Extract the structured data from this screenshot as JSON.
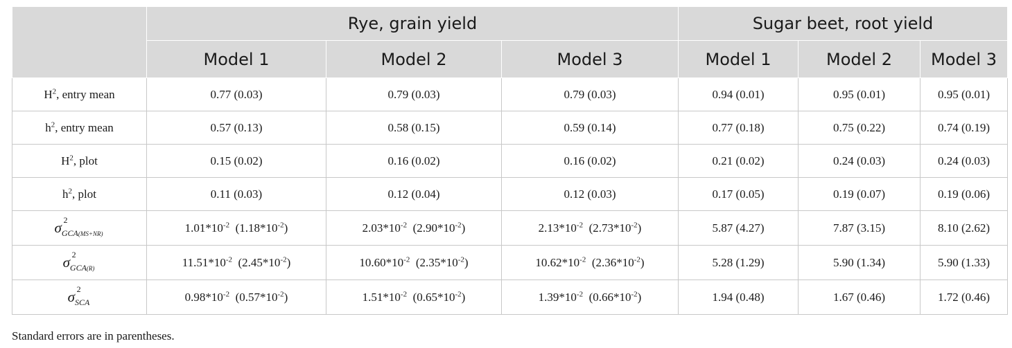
{
  "header": {
    "group_rye": "Rye, grain yield",
    "group_beet": "Sugar beet, root yield",
    "models": [
      "Model 1",
      "Model 2",
      "Model 3",
      "Model 1",
      "Model 2",
      "Model 3"
    ]
  },
  "rows": [
    {
      "label_main": "H",
      "label_sup": "2",
      "label_rest": ", entry mean",
      "cells": [
        "0.77 (0.03)",
        "0.79 (0.03)",
        "0.79 (0.03)",
        "0.94 (0.01)",
        "0.95 (0.01)",
        "0.95 (0.01)"
      ]
    },
    {
      "label_main": "h",
      "label_sup": "2",
      "label_rest": ", entry mean",
      "cells": [
        "0.57 (0.13)",
        "0.58 (0.15)",
        "0.59 (0.14)",
        "0.77 (0.18)",
        "0.75 (0.22)",
        "0.74 (0.19)"
      ]
    },
    {
      "label_main": "H",
      "label_sup": "2",
      "label_rest": ", plot",
      "cells": [
        "0.15 (0.02)",
        "0.16 (0.02)",
        "0.16 (0.02)",
        "0.21 (0.02)",
        "0.24 (0.03)",
        "0.24 (0.03)"
      ]
    },
    {
      "label_main": "h",
      "label_sup": "2",
      "label_rest": ", plot",
      "cells": [
        "0.11 (0.03)",
        "0.12 (0.04)",
        "0.12 (0.03)",
        "0.17 (0.05)",
        "0.19 (0.07)",
        "0.19 (0.06)"
      ]
    },
    {
      "sigma": "σ",
      "sigma_sup": "2",
      "sigma_sub": "GCA",
      "sigma_sub2": "(MS+NR)",
      "cells_sci": [
        {
          "a": "1.01*10",
          "ae": "-2",
          "b": "(1.18*10",
          "be": "-2",
          "c": ")"
        },
        {
          "a": "2.03*10",
          "ae": "-2",
          "b": "(2.90*10",
          "be": "-2",
          "c": ")"
        },
        {
          "a": "2.13*10",
          "ae": "-2",
          "b": "(2.73*10",
          "be": "-2",
          "c": ")"
        }
      ],
      "cells": [
        "5.87 (4.27)",
        "7.87 (3.15)",
        "8.10 (2.62)"
      ]
    },
    {
      "sigma": "σ",
      "sigma_sup": "2",
      "sigma_sub": "GCA",
      "sigma_sub2": "(R)",
      "cells_sci": [
        {
          "a": "11.51*10",
          "ae": "-2",
          "b": "(2.45*10",
          "be": "-2",
          "c": ")"
        },
        {
          "a": "10.60*10",
          "ae": "-2",
          "b": "(2.35*10",
          "be": "-2",
          "c": ")"
        },
        {
          "a": "10.62*10",
          "ae": "-2",
          "b": "(2.36*10",
          "be": "-2",
          "c": ")"
        }
      ],
      "cells": [
        "5.28 (1.29)",
        "5.90 (1.34)",
        "5.90 (1.33)"
      ]
    },
    {
      "sigma": "σ",
      "sigma_sup": "2",
      "sigma_sub": "SCA",
      "sigma_sub2": "",
      "cells_sci": [
        {
          "a": "0.98*10",
          "ae": "-2",
          "b": "(0.57*10",
          "be": "-2",
          "c": ")"
        },
        {
          "a": "1.51*10",
          "ae": "-2",
          "b": "(0.65*10",
          "be": "-2",
          "c": ")"
        },
        {
          "a": "1.39*10",
          "ae": "-2",
          "b": "(0.66*10",
          "be": "-2",
          "c": ")"
        }
      ],
      "cells": [
        "1.94 (0.48)",
        "1.67 (0.46)",
        "1.72 (0.46)"
      ]
    }
  ],
  "footnote": "Standard errors are in parentheses."
}
